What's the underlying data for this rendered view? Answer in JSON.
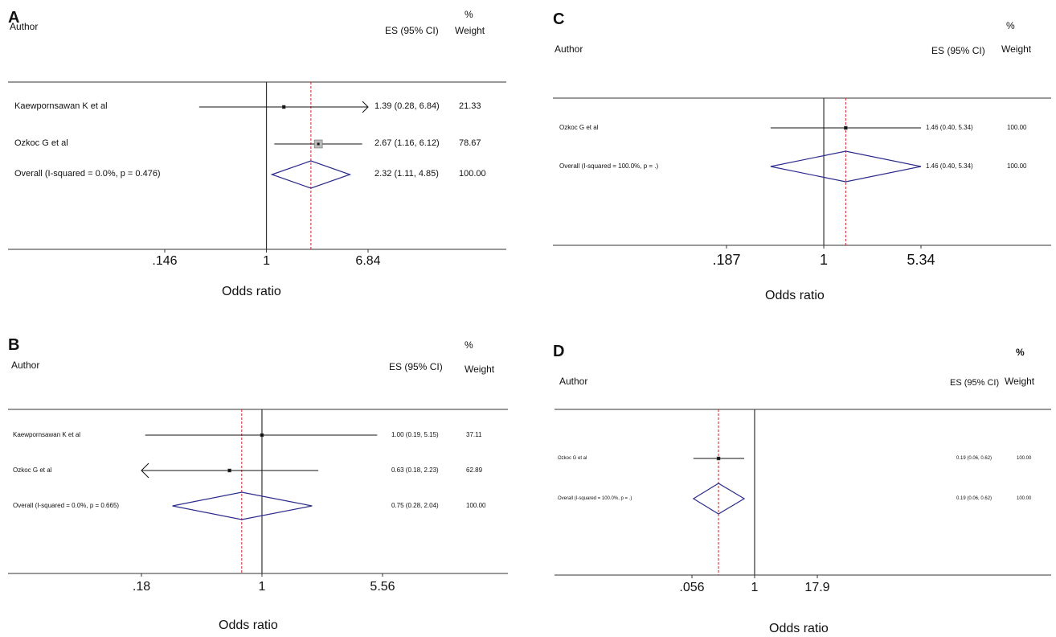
{
  "chart_data": [
    {
      "panel": "A",
      "type": "forest",
      "headers": {
        "author": "Author",
        "es": "ES (95% CI)",
        "pct": "%",
        "weight": "Weight"
      },
      "studies": [
        {
          "label": "Kaewpornsawan K et al",
          "es": 1.39,
          "lo": 0.28,
          "hi": 6.84,
          "es_text": "1.39 (0.28, 6.84)",
          "weight_text": "21.33",
          "arrow_right": true
        },
        {
          "label": "Ozkoc G et al",
          "es": 2.67,
          "lo": 1.16,
          "hi": 6.12,
          "es_text": "2.67 (1.16, 6.12)",
          "weight_text": "78.67"
        }
      ],
      "overall": {
        "label": "Overall  (I-squared = 0.0%, p = 0.476)",
        "es": 2.32,
        "lo": 1.11,
        "hi": 4.85,
        "es_text": "2.32 (1.11, 4.85)",
        "weight_text": "100.00"
      },
      "xticks": [
        ".146",
        "1",
        "6.84"
      ],
      "xlim": [
        0.146,
        6.84
      ],
      "xlabel": "Odds ratio",
      "scale": "log"
    },
    {
      "panel": "B",
      "type": "forest",
      "headers": {
        "author": "Author",
        "es": "ES (95% CI)",
        "pct": "%",
        "weight": "Weight"
      },
      "studies": [
        {
          "label": "Kaewpornsawan K et al",
          "es": 1.0,
          "lo": 0.19,
          "hi": 5.15,
          "es_text": "1.00 (0.19, 5.15)",
          "weight_text": "37.11"
        },
        {
          "label": "Ozkoc G et al",
          "es": 0.63,
          "lo": 0.18,
          "hi": 2.23,
          "es_text": "0.63 (0.18, 2.23)",
          "weight_text": "62.89",
          "arrow_left": true
        }
      ],
      "overall": {
        "label": "Overall  (I-squared = 0.0%, p = 0.665)",
        "es": 0.75,
        "lo": 0.28,
        "hi": 2.04,
        "es_text": "0.75 (0.28, 2.04)",
        "weight_text": "100.00"
      },
      "xticks": [
        ".18",
        "1",
        "5.56"
      ],
      "xlim": [
        0.18,
        5.56
      ],
      "xlabel": "Odds ratio",
      "scale": "log"
    },
    {
      "panel": "C",
      "type": "forest",
      "headers": {
        "author": "Author",
        "es": "ES (95% CI)",
        "pct": "%",
        "weight": "Weight"
      },
      "studies": [
        {
          "label": "Ozkoc G et al",
          "es": 1.46,
          "lo": 0.4,
          "hi": 5.34,
          "es_text": "1.46 (0.40, 5.34)",
          "weight_text": "100.00"
        }
      ],
      "overall": {
        "label": "Overall  (I-squared = 100.0%, p = .)",
        "es": 1.46,
        "lo": 0.4,
        "hi": 5.34,
        "es_text": "1.46 (0.40, 5.34)",
        "weight_text": "100.00"
      },
      "xticks": [
        ".187",
        "1",
        "5.34"
      ],
      "xlim": [
        0.187,
        5.34
      ],
      "xlabel": "Odds ratio",
      "scale": "log"
    },
    {
      "panel": "D",
      "type": "forest",
      "headers": {
        "author": "Author",
        "es": "ES (95% CI)",
        "pct": "%",
        "weight": "Weight"
      },
      "studies": [
        {
          "label": "Ozkoc G et al",
          "es": 0.19,
          "lo": 0.06,
          "hi": 0.62,
          "es_text": "0.19 (0.06, 0.62)",
          "weight_text": "100.00"
        }
      ],
      "overall": {
        "label": "Overall  (I-squared = 100.0%, p = .)",
        "es": 0.19,
        "lo": 0.06,
        "hi": 0.62,
        "es_text": "0.19 (0.06, 0.62)",
        "weight_text": "100.00"
      },
      "xticks": [
        ".056",
        "1",
        "17.9"
      ],
      "xlim": [
        0.056,
        17.9
      ],
      "xlabel": "Odds ratio",
      "scale": "log"
    }
  ],
  "colors": {
    "ci_line": "#111111",
    "diamond": "#2b2b8c",
    "overall_line": "#d2232a",
    "frame": "#333333",
    "null_line": "#333333"
  }
}
